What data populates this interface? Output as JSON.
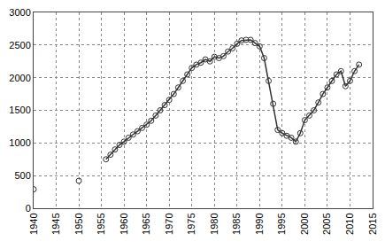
{
  "chart_data": {
    "type": "line",
    "x": [
      1940,
      1945,
      1950,
      1953,
      1956,
      1957,
      1958,
      1959,
      1960,
      1961,
      1962,
      1963,
      1964,
      1965,
      1966,
      1967,
      1968,
      1969,
      1970,
      1971,
      1972,
      1973,
      1974,
      1975,
      1976,
      1977,
      1978,
      1979,
      1980,
      1981,
      1982,
      1983,
      1984,
      1985,
      1986,
      1987,
      1988,
      1989,
      1990,
      1991,
      1992,
      1993,
      1994,
      1995,
      1996,
      1997,
      1998,
      1999,
      2000,
      2001,
      2002,
      2003,
      2004,
      2005,
      2006,
      2007,
      2008,
      2009,
      2010,
      2011,
      2012
    ],
    "series": [
      {
        "name": "",
        "color": "#333333",
        "marker": "circle-open",
        "line_style": "solid",
        "values": [
          290,
          null,
          420,
          null,
          750,
          820,
          900,
          970,
          1020,
          1080,
          1130,
          1180,
          1230,
          1280,
          1340,
          1420,
          1500,
          1580,
          1660,
          1750,
          1850,
          1950,
          2050,
          2150,
          2200,
          2230,
          2280,
          2250,
          2320,
          2300,
          2330,
          2400,
          2450,
          2520,
          2570,
          2580,
          2580,
          2530,
          2480,
          2300,
          1950,
          1600,
          1200,
          1150,
          1110,
          1080,
          1020,
          1150,
          1350,
          1420,
          1500,
          1620,
          1750,
          1850,
          1950,
          2050,
          2100,
          1870,
          1950,
          2100,
          2200
        ]
      }
    ],
    "xlim": [
      1940,
      2015
    ],
    "xticks": [
      1940,
      1945,
      1950,
      1955,
      1960,
      1965,
      1970,
      1975,
      1980,
      1985,
      1990,
      1995,
      2000,
      2005,
      2010,
      2015
    ],
    "ylim": [
      0,
      3000
    ],
    "yticks": [
      0,
      500,
      1000,
      1500,
      2000,
      2500,
      3000
    ],
    "grid": true
  }
}
